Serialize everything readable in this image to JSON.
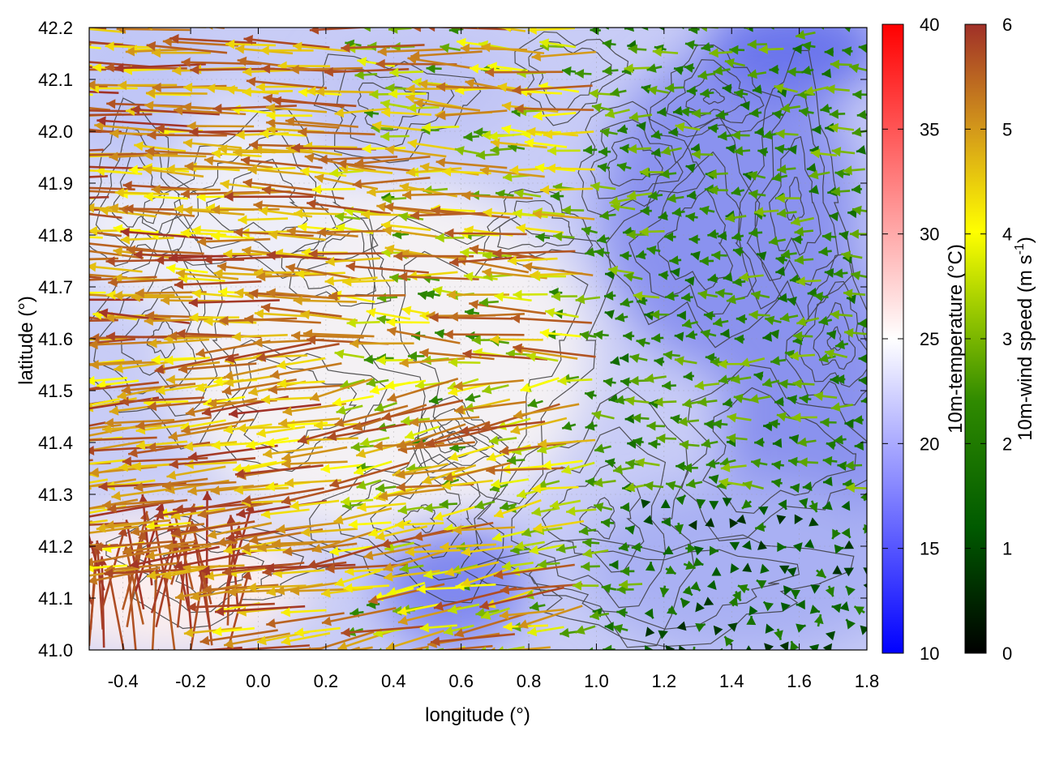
{
  "chart_data": {
    "type": "heatmap",
    "description_type": "wind-vector field over temperature map with terrain contours",
    "xlabel": "longitude (°)",
    "ylabel": "latitude (°)",
    "xlim": [
      -0.5,
      1.8
    ],
    "ylim": [
      41.0,
      42.2
    ],
    "x_ticks": [
      "-0.4",
      "-0.2",
      "0.0",
      "0.2",
      "0.4",
      "0.6",
      "0.8",
      "1.0",
      "1.2",
      "1.4",
      "1.6",
      "1.8"
    ],
    "x_tick_values": [
      -0.4,
      -0.2,
      0.0,
      0.2,
      0.4,
      0.6,
      0.8,
      1.0,
      1.2,
      1.4,
      1.6,
      1.8
    ],
    "y_ticks": [
      "41.0",
      "41.1",
      "41.2",
      "41.3",
      "41.4",
      "41.5",
      "41.6",
      "41.7",
      "41.8",
      "41.9",
      "42.0",
      "42.1",
      "42.2"
    ],
    "y_tick_values": [
      41.0,
      41.1,
      41.2,
      41.3,
      41.4,
      41.5,
      41.6,
      41.7,
      41.8,
      41.9,
      42.0,
      42.1,
      42.2
    ],
    "grid": true,
    "temperature_colorbar": {
      "label": "10m-temperature (°C)",
      "range": [
        10,
        40
      ],
      "ticks": [
        "10",
        "15",
        "20",
        "25",
        "30",
        "35",
        "40"
      ],
      "tick_values": [
        10,
        15,
        20,
        25,
        30,
        35,
        40
      ],
      "colors": [
        "#0000ff",
        "#ffffff",
        "#ff0000"
      ]
    },
    "wind_colorbar": {
      "label_prefix": "10m-wind speed (m s",
      "label_sup": "-1",
      "label_suffix": ")",
      "range": [
        0,
        6
      ],
      "ticks": [
        "0",
        "1",
        "2",
        "3",
        "4",
        "5",
        "6"
      ],
      "tick_values": [
        0,
        1,
        2,
        3,
        4,
        5,
        6
      ],
      "colors": [
        "#000000",
        "#006400",
        "#7fbf00",
        "#ffff00",
        "#d4a017",
        "#a0522d",
        "#a52a2a"
      ]
    },
    "wind_direction_regimes": [
      {
        "region": "west of 0.9°E",
        "direction": "westward (from east)",
        "speed_range": [
          3,
          6
        ]
      },
      {
        "region": "east of 1.0°E, north",
        "direction": "westward",
        "speed_range": [
          1.5,
          3
        ]
      },
      {
        "region": "south-east 1.2–1.8°E, 41.0–41.3°N",
        "direction": "weak, variable",
        "speed_range": [
          0,
          1.5
        ]
      },
      {
        "region": "south-west -0.4–0.0°E, 41.0–41.15°N",
        "direction": "northward",
        "speed_range": [
          5,
          6
        ]
      }
    ],
    "temperature_regimes": [
      {
        "region": "central 0.2–0.8°E, 41.4–41.8°N",
        "temperature_range": [
          23,
          26
        ]
      },
      {
        "region": "east 1.0–1.8°E",
        "temperature_range": [
          15,
          20
        ]
      },
      {
        "region": "south-west -0.5–0.1°E, 41.0–41.2°N",
        "temperature_range": [
          25,
          27
        ]
      }
    ]
  }
}
